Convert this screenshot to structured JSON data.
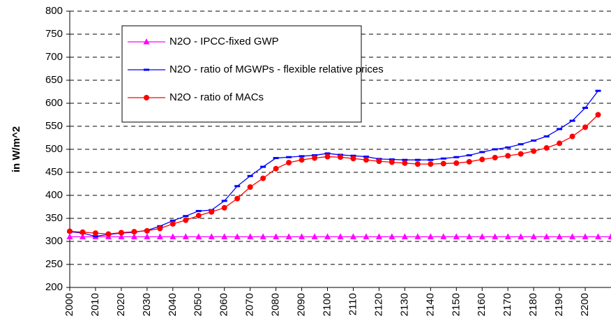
{
  "chart_data": {
    "type": "line",
    "y_label": "in W/m^2",
    "x": [
      2000,
      2005,
      2010,
      2015,
      2020,
      2025,
      2030,
      2035,
      2040,
      2045,
      2050,
      2055,
      2060,
      2065,
      2070,
      2075,
      2080,
      2085,
      2090,
      2095,
      2100,
      2105,
      2110,
      2115,
      2120,
      2125,
      2130,
      2135,
      2140,
      2145,
      2150,
      2155,
      2160,
      2165,
      2170,
      2175,
      2180,
      2185,
      2190,
      2195,
      2200,
      2205,
      2210
    ],
    "series": [
      {
        "name": "N2O - IPCC-fixed GWP",
        "color": "#ff00ff",
        "marker": "triangle",
        "values": [
          310,
          310,
          310,
          310,
          310,
          310,
          310,
          310,
          310,
          310,
          310,
          310,
          310,
          310,
          310,
          310,
          310,
          310,
          310,
          310,
          310,
          310,
          310,
          310,
          310,
          310,
          310,
          310,
          310,
          310,
          310,
          310,
          310,
          310,
          310,
          310,
          310,
          310,
          310,
          310,
          310,
          310,
          310
        ]
      },
      {
        "name": "N2O - ratio of MGWPs - flexible relative prices",
        "color": "#0000ff",
        "marker": "dash",
        "values": [
          321,
          318,
          311,
          315,
          318,
          320,
          324,
          333,
          345,
          355,
          366,
          368,
          388,
          420,
          442,
          462,
          481,
          483,
          485,
          487,
          491,
          488,
          486,
          484,
          479,
          478,
          477,
          477,
          477,
          480,
          483,
          487,
          494,
          500,
          504,
          511,
          519,
          528,
          544,
          562,
          590,
          627,
          null
        ]
      },
      {
        "name": "N2O - ratio of MACs",
        "color": "#ff0000",
        "marker": "circle",
        "values": [
          322,
          320,
          318,
          316,
          319,
          321,
          323,
          328,
          338,
          346,
          356,
          364,
          373,
          393,
          418,
          437,
          458,
          471,
          477,
          481,
          484,
          483,
          480,
          477,
          474,
          472,
          470,
          468,
          468,
          469,
          470,
          473,
          478,
          482,
          486,
          490,
          496,
          503,
          513,
          528,
          548,
          575,
          null
        ]
      }
    ],
    "xlim": [
      2000,
      2210
    ],
    "xticks": [
      2000,
      2010,
      2020,
      2030,
      2040,
      2050,
      2060,
      2070,
      2080,
      2090,
      2100,
      2110,
      2120,
      2130,
      2140,
      2150,
      2160,
      2170,
      2180,
      2190,
      2200
    ],
    "ylim": [
      200,
      800
    ],
    "yticks": [
      200,
      250,
      300,
      350,
      400,
      450,
      500,
      550,
      600,
      650,
      700,
      750,
      800
    ],
    "grid": true
  }
}
